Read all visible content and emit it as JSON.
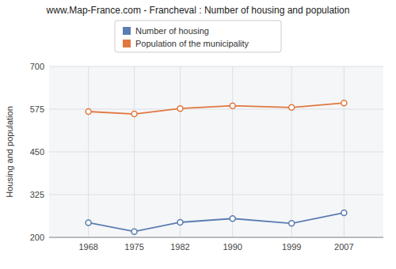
{
  "chart_data": {
    "type": "line",
    "title": "www.Map-France.com - Francheval : Number of housing and population",
    "ylabel": "Housing and population",
    "x": [
      1968,
      1975,
      1982,
      1990,
      1999,
      2007
    ],
    "xlim": [
      1962,
      2013
    ],
    "xticks": [
      1968,
      1975,
      1982,
      1990,
      1999,
      2007
    ],
    "ylim": [
      200,
      700
    ],
    "yticks": [
      200,
      325,
      450,
      575,
      700
    ],
    "grid": true,
    "legend": "top",
    "marker": "circle",
    "series": [
      {
        "name": "Number of housing",
        "color": "#5b7db1",
        "values": [
          243,
          217,
          244,
          255,
          241,
          272
        ]
      },
      {
        "name": "Population of the municipality",
        "color": "#e07840",
        "values": [
          568,
          561,
          577,
          585,
          580,
          593
        ]
      }
    ]
  }
}
